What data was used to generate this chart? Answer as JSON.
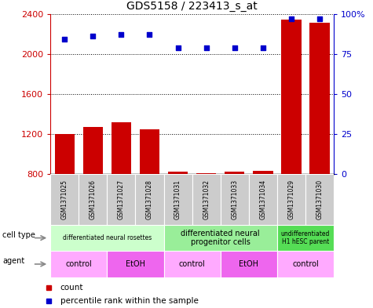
{
  "title": "GDS5158 / 223413_s_at",
  "samples": [
    "GSM1371025",
    "GSM1371026",
    "GSM1371027",
    "GSM1371028",
    "GSM1371031",
    "GSM1371032",
    "GSM1371033",
    "GSM1371034",
    "GSM1371029",
    "GSM1371030"
  ],
  "counts": [
    1200,
    1270,
    1320,
    1245,
    820,
    810,
    820,
    835,
    2340,
    2310
  ],
  "percentiles": [
    84,
    86,
    87,
    87,
    79,
    79,
    79,
    79,
    97,
    97
  ],
  "ymin": 800,
  "ymax": 2400,
  "yticks": [
    800,
    1200,
    1600,
    2000,
    2400
  ],
  "y2ticks": [
    0,
    25,
    50,
    75,
    100
  ],
  "cell_type_groups": [
    {
      "label": "differentiated neural rosettes",
      "start": 0,
      "end": 3,
      "color": "#ccffcc",
      "fontsize": 5.5
    },
    {
      "label": "differentiated neural\nprogenitor cells",
      "start": 4,
      "end": 7,
      "color": "#99ee99",
      "fontsize": 7
    },
    {
      "label": "undifferentiated\nH1 hESC parent",
      "start": 8,
      "end": 9,
      "color": "#55dd55",
      "fontsize": 5.5
    }
  ],
  "agent_groups": [
    {
      "label": "control",
      "start": 0,
      "end": 1,
      "color": "#ffaaff"
    },
    {
      "label": "EtOH",
      "start": 2,
      "end": 3,
      "color": "#ee66ee"
    },
    {
      "label": "control",
      "start": 4,
      "end": 5,
      "color": "#ffaaff"
    },
    {
      "label": "EtOH",
      "start": 6,
      "end": 7,
      "color": "#ee66ee"
    },
    {
      "label": "control",
      "start": 8,
      "end": 9,
      "color": "#ffaaff"
    }
  ],
  "bar_color": "#cc0000",
  "dot_color": "#0000cc",
  "background_color": "#ffffff",
  "tick_color_left": "#cc0000",
  "tick_color_right": "#0000cc",
  "legend_items": [
    "count",
    "percentile rank within the sample"
  ],
  "sample_box_color": "#cccccc",
  "sample_box_edge": "#888888"
}
